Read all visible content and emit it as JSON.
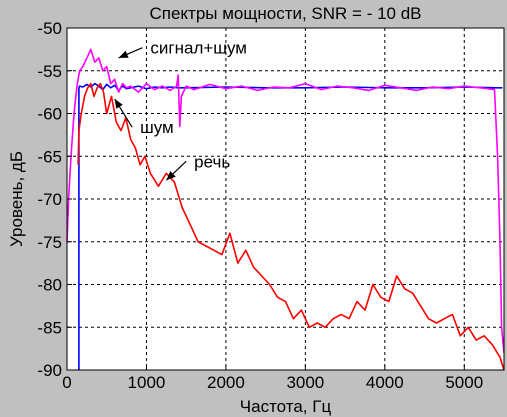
{
  "chart_data": {
    "type": "line",
    "title": "Спектры мощности, SNR = - 10 dB",
    "xlabel": "Частота, Гц",
    "ylabel": "Уровень, дБ",
    "xlim": [
      0,
      5500
    ],
    "ylim": [
      -90,
      -50
    ],
    "xticks": [
      0,
      1000,
      2000,
      3000,
      4000,
      5000
    ],
    "yticks": [
      -50,
      -55,
      -60,
      -65,
      -70,
      -75,
      -80,
      -85,
      -90
    ],
    "xtick_labels": [
      "0",
      "1000",
      "2000",
      "3000",
      "4000",
      "5000"
    ],
    "ytick_labels": [
      "-50",
      "-55",
      "-60",
      "-65",
      "-70",
      "-75",
      "-80",
      "-85",
      "-90"
    ],
    "grid": true,
    "background": "#ffffff",
    "figure_background": "#c0c0c0",
    "series": [
      {
        "color": "#0000ff",
        "x": [
          150,
          150,
          160,
          200,
          250,
          300,
          350,
          400,
          450,
          500,
          550,
          600,
          650,
          700,
          750,
          800,
          900,
          1000,
          1100,
          1200,
          1300,
          1400,
          1500,
          2000,
          2500,
          3000,
          3500,
          4000,
          4500,
          5000,
          5400,
          5480
        ],
        "y": [
          -90,
          -57.0,
          -56.8,
          -56.9,
          -56.6,
          -56.9,
          -56.5,
          -56.8,
          -57.2,
          -56.6,
          -57.0,
          -56.7,
          -57.3,
          -56.8,
          -57.1,
          -57.0,
          -56.8,
          -57.1,
          -56.9,
          -57.0,
          -56.9,
          -57.0,
          -57.0,
          -56.9,
          -57.0,
          -57.0,
          -56.9,
          -57.0,
          -57.0,
          -56.9,
          -57.0,
          -57.0
        ]
      },
      {
        "color": "#ff00ff",
        "x": [
          0,
          20,
          50,
          80,
          100,
          130,
          160,
          200,
          250,
          300,
          350,
          400,
          450,
          500,
          550,
          600,
          650,
          700,
          750,
          800,
          900,
          1000,
          1100,
          1200,
          1300,
          1380,
          1400,
          1420,
          1440,
          1500,
          1600,
          1800,
          2000,
          2200,
          2400,
          2600,
          2800,
          3000,
          3200,
          3400,
          3600,
          3800,
          4000,
          4200,
          4400,
          4600,
          4800,
          5000,
          5200,
          5380,
          5420,
          5450,
          5470,
          5500
        ],
        "y": [
          -75,
          -70,
          -65,
          -61,
          -59,
          -56.5,
          -55.0,
          -54.5,
          -53.5,
          -52.5,
          -54.0,
          -53.5,
          -55.0,
          -54.5,
          -56.5,
          -56.0,
          -57.5,
          -56.5,
          -57.0,
          -56.8,
          -57.5,
          -56.5,
          -57.2,
          -56.8,
          -57.3,
          -56.8,
          -55.5,
          -61.5,
          -58.0,
          -56.8,
          -57.2,
          -56.6,
          -57.1,
          -56.8,
          -57.3,
          -56.9,
          -57.0,
          -56.5,
          -57.2,
          -56.8,
          -57.0,
          -57.3,
          -56.7,
          -57.0,
          -57.3,
          -56.9,
          -57.1,
          -56.8,
          -57.0,
          -57.2,
          -65.0,
          -75.0,
          -85.0,
          -88.0
        ]
      },
      {
        "color": "#ff0000",
        "x": [
          140,
          150,
          180,
          220,
          260,
          300,
          340,
          380,
          420,
          460,
          500,
          560,
          620,
          680,
          740,
          800,
          860,
          920,
          980,
          1050,
          1150,
          1250,
          1350,
          1450,
          1550,
          1650,
          1750,
          1850,
          1950,
          2050,
          2150,
          2250,
          2350,
          2450,
          2550,
          2650,
          2750,
          2850,
          2950,
          3050,
          3150,
          3250,
          3350,
          3450,
          3550,
          3650,
          3750,
          3850,
          3950,
          4050,
          4150,
          4250,
          4350,
          4450,
          4550,
          4650,
          4750,
          4850,
          4950,
          5050,
          5150,
          5250,
          5350,
          5450,
          5500
        ],
        "y": [
          -66,
          -62,
          -60,
          -58,
          -57,
          -56.5,
          -58,
          -57,
          -56.5,
          -57.5,
          -60,
          -58,
          -61,
          -62,
          -60.5,
          -63,
          -64,
          -66,
          -65,
          -67,
          -68.5,
          -67,
          -68,
          -71,
          -73,
          -75,
          -75.5,
          -76,
          -76.5,
          -74,
          -77.5,
          -76,
          -78,
          -79,
          -80,
          -81.5,
          -82,
          -84,
          -83,
          -85,
          -84.5,
          -85,
          -84,
          -83.5,
          -84,
          -82,
          -83,
          -80,
          -81.5,
          -82,
          -79,
          -80.5,
          -81,
          -82.5,
          -84,
          -84.5,
          -84,
          -83.5,
          -86,
          -85,
          -86.5,
          -86,
          -87,
          -88.5,
          -90
        ]
      }
    ],
    "annotations": [
      {
        "text": "сигнал+шум",
        "x_text": 1050,
        "y_text": -53.0,
        "x_arrow": 650,
        "y_arrow": -53.5
      },
      {
        "text": "шум",
        "x_text": 920,
        "y_text": -62.3,
        "x_arrow": 600,
        "y_arrow": -58.3
      },
      {
        "text": "речь",
        "x_text": 1600,
        "y_text": -66.3,
        "x_arrow": 1250,
        "y_arrow": -67.8
      }
    ]
  }
}
